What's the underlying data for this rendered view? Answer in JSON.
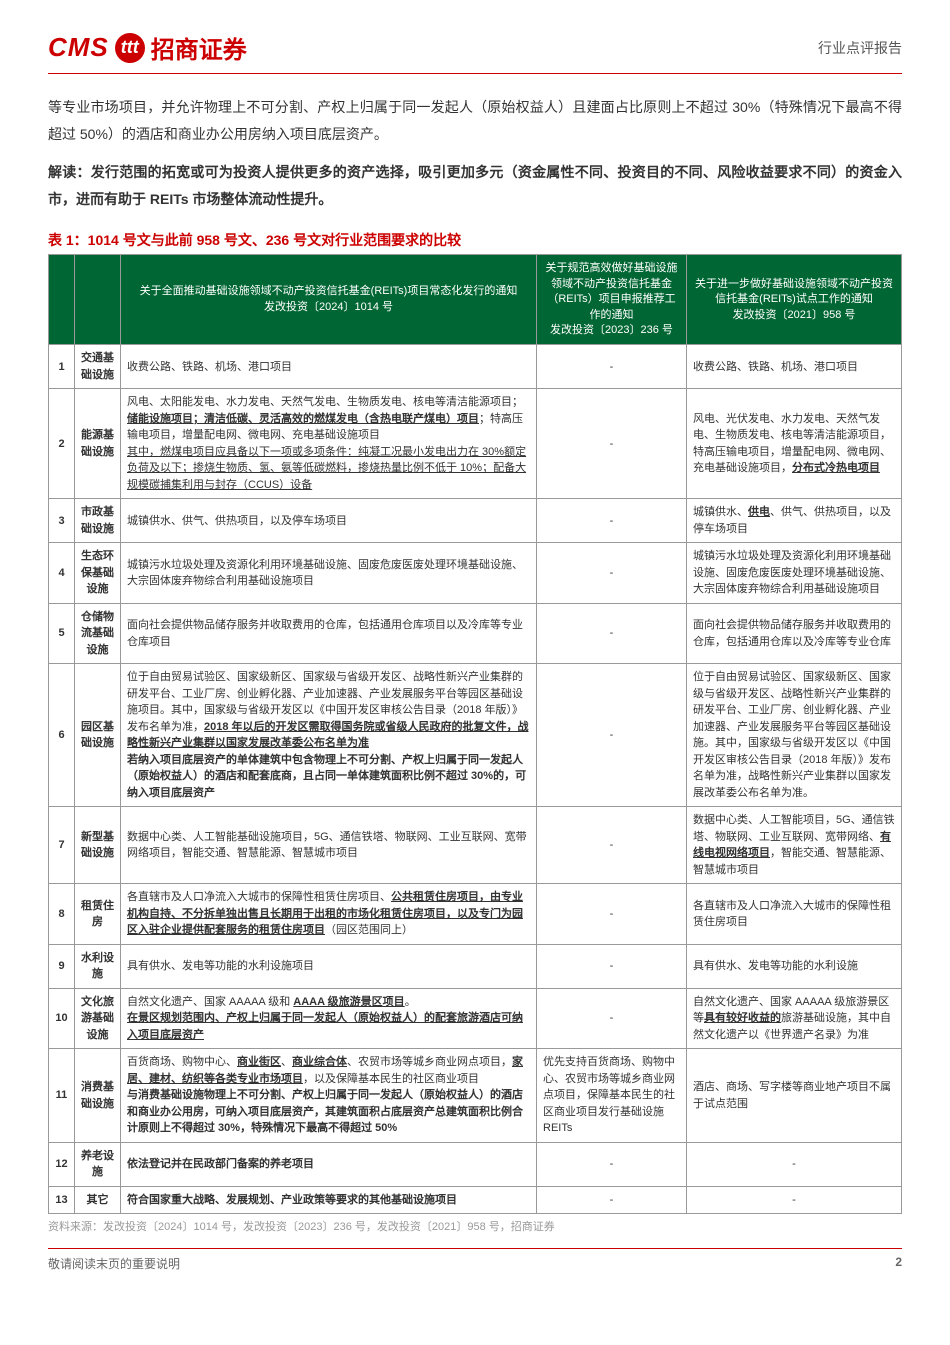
{
  "header": {
    "logo_cms": "CMS",
    "logo_icon": "ttt",
    "logo_cn": "招商证券",
    "doc_type": "行业点评报告"
  },
  "para1": "等专业市场项目，并允许物理上不可分割、产权上归属于同一发起人（原始权益人）且建面占比原则上不超过 30%（特殊情况下最高不得超过 50%）的酒店和商业办公用房纳入项目底层资产。",
  "interp_label": "解读：",
  "para2": "发行范围的拓宽或可为投资人提供更多的资产选择，吸引更加多元（资金属性不同、投资目的不同、风险收益要求不同）的资金入市，进而有助于 REITs 市场整体流动性提升。",
  "table_title": "表 1：1014 号文与此前 958 号文、236 号文对行业范围要求的比较",
  "columns": {
    "c1": "关于全面推动基础设施领域不动产投资信托基金(REITs)项目常态化发行的通知",
    "c1b": "发改投资〔2024〕1014 号",
    "c2": "关于规范高效做好基础设施领域不动产投资信托基金（REITs）项目申报推荐工作的通知",
    "c2b": "发改投资〔2023〕236 号",
    "c3": "关于进一步做好基础设施领域不动产投资信托基金(REITs)试点工作的通知",
    "c3b": "发改投资〔2021〕958 号"
  },
  "rows": [
    {
      "n": "1",
      "cat": "交通基础设施",
      "a": "收费公路、铁路、机场、港口项目",
      "b": "-",
      "c": "收费公路、铁路、机场、港口项目"
    },
    {
      "n": "2",
      "cat": "能源基础设施",
      "a": "风电、太阳能发电、水力发电、天然气发电、生物质发电、核电等清洁能源项目；<b><span class='u'>储能设施项目；清洁低碳、灵活高效的燃煤发电（含热电联产煤电）项目</span></b>；特高压输电项目，增量配电网、微电网、充电基础设施项目<br><span class='u'>其中，燃煤电项目应具备以下一项或多项条件：纯凝工况最小发电出力在 30%额定负荷及以下；掺烧生物质、氢、氨等低碳燃料，掺烧热量比例不低于 10%；配备大规模碳捕集利用与封存（CCUS）设备</span>",
      "b": "-",
      "c": "风电、光伏发电、水力发电、天然气发电、生物质发电、核电等清洁能源项目，特高压输电项目，增量配电网、微电网、充电基础设施项目，<b><span class='u'>分布式冷热电项目</span></b>"
    },
    {
      "n": "3",
      "cat": "市政基础设施",
      "a": "城镇供水、供气、供热项目，以及停车场项目",
      "b": "-",
      "c": "城镇供水、<b><span class='u'>供电</span></b>、供气、供热项目，以及停车场项目"
    },
    {
      "n": "4",
      "cat": "生态环保基础设施",
      "a": "城镇污水垃圾处理及资源化利用环境基础设施、固废危废医废处理环境基础设施、大宗固体废弃物综合利用基础设施项目",
      "b": "-",
      "c": "城镇污水垃圾处理及资源化利用环境基础设施、固废危废医废处理环境基础设施、大宗固体废弃物综合利用基础设施项目"
    },
    {
      "n": "5",
      "cat": "仓储物流基础设施",
      "a": "面向社会提供物品储存服务并收取费用的仓库，包括通用仓库项目以及冷库等专业仓库项目",
      "b": "-",
      "c": "面向社会提供物品储存服务并收取费用的仓库，包括通用仓库以及冷库等专业仓库"
    },
    {
      "n": "6",
      "cat": "园区基础设施",
      "a": "位于自由贸易试验区、国家级新区、国家级与省级开发区、战略性新兴产业集群的研发平台、工业厂房、创业孵化器、产业加速器、产业发展服务平台等园区基础设施项目。其中，国家级与省级开发区以《中国开发区审核公告目录（2018 年版）》发布名单为准，<b><span class='u'>2018 年以后的开发区需取得国务院或省级人民政府的批复文件，战略性新兴产业集群以国家发展改革委公布名单为准</span></b><br><b>若纳入项目底层资产的单体建筑中包含物理上不可分割、产权上归属于同一发起人（原始权益人）的酒店和配套底商，且占同一单体建筑面积比例不超过 30%的，可纳入项目底层资产</b>",
      "b": "-",
      "c": "位于自由贸易试验区、国家级新区、国家级与省级开发区、战略性新兴产业集群的研发平台、工业厂房、创业孵化器、产业加速器、产业发展服务平台等园区基础设施。其中，国家级与省级开发区以《中国开发区审核公告目录（2018 年版）》发布名单为准，战略性新兴产业集群以国家发展改革委公布名单为准。"
    },
    {
      "n": "7",
      "cat": "新型基础设施",
      "a": "数据中心类、人工智能基础设施项目，5G、通信铁塔、物联网、工业互联网、宽带网络项目，智能交通、智慧能源、智慧城市项目",
      "b": "-",
      "c": "数据中心类、人工智能项目，5G、通信铁塔、物联网、工业互联网、宽带网络、<b><span class='u'>有线电视网络项目</span></b>，智能交通、智慧能源、智慧城市项目"
    },
    {
      "n": "8",
      "cat": "租赁住房",
      "a": "各直辖市及人口净流入大城市的保障性租赁住房项目、<b><span class='u'>公共租赁住房项目，由专业机构自持、不分拆单独出售且长期用于出租的市场化租赁住房项目，以及专门为园区入驻企业提供配套服务的租赁住房项目</span></b>（园区范围同上）",
      "b": "-",
      "c": "各直辖市及人口净流入大城市的保障性租赁住房项目"
    },
    {
      "n": "9",
      "cat": "水利设施",
      "a": "具有供水、发电等功能的水利设施项目",
      "b": "-",
      "c": "具有供水、发电等功能的水利设施"
    },
    {
      "n": "10",
      "cat": "文化旅游基础设施",
      "a": "自然文化遗产、国家 AAAAA 级和 <b><span class='u'>AAAA 级旅游景区项目</span></b>。<br><b><span class='u'>在景区规划范围内、产权上归属于同一发起人（原始权益人）的配套旅游酒店可纳入项目底层资产</span></b>",
      "b": "-",
      "c": "自然文化遗产、国家 AAAAA 级旅游景区等<b><span class='u'>具有较好收益的</span></b>旅游基础设施，其中自然文化遗产以《世界遗产名录》为准"
    },
    {
      "n": "11",
      "cat": "消费基础设施",
      "a": "百货商场、购物中心、<b><span class='u'>商业街区</span></b>、<b><span class='u'>商业综合体</span></b>、农贸市场等城乡商业网点项目，<b><span class='u'>家居、建材、纺织等各类专业市场项目</span></b>，以及保障基本民生的社区商业项目<br><b>与消费基础设施物理上不可分割、产权上归属于同一发起人（原始权益人）的酒店和商业办公用房，可纳入项目底层资产，其建筑面积占底层资产总建筑面积比例合计原则上不得超过 30%，特殊情况下最高不得超过 50%</b>",
      "b": "优先支持百货商场、购物中心、农贸市场等城乡商业网点项目，保障基本民生的社区商业项目发行基础设施 REITs",
      "c": "酒店、商场、写字楼等商业地产项目不属于试点范围"
    },
    {
      "n": "12",
      "cat": "养老设施",
      "a": "<b>依法登记并在民政部门备案的养老项目</b>",
      "b": "-",
      "c": "-"
    },
    {
      "n": "13",
      "cat": "其它",
      "a": "<b>符合国家重大战略、发展规划、产业政策等要求的其他基础设施项目</b>",
      "b": "-",
      "c": "-"
    }
  ],
  "source": "资料来源：发改投资〔2024〕1014 号，发改投资〔2023〕236 号，发改投资〔2021〕958 号，招商证券",
  "footer": {
    "note": "敬请阅读末页的重要说明",
    "page": "2"
  }
}
